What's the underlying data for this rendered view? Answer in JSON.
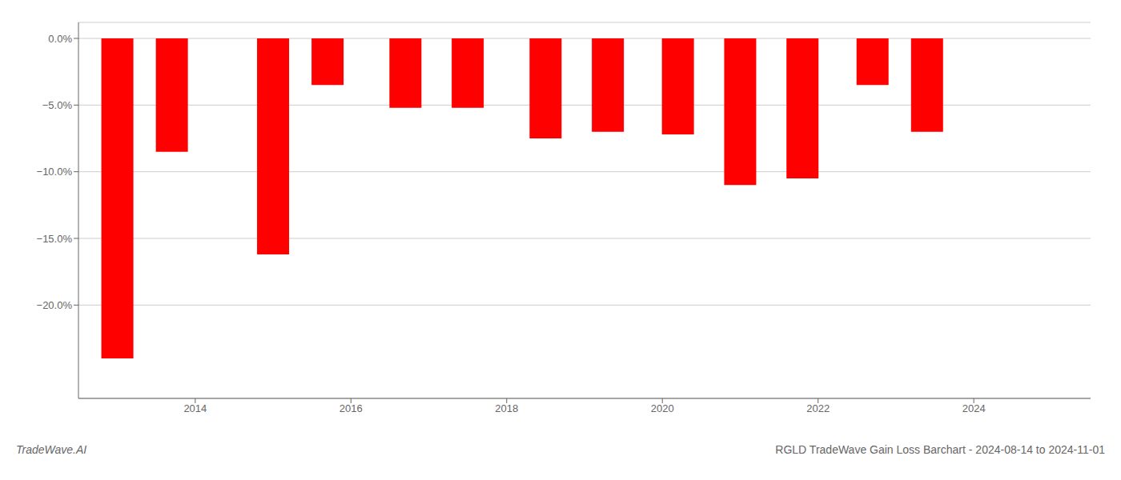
{
  "chart_data": {
    "type": "bar",
    "x": [
      2013,
      2013.7,
      2015,
      2015.7,
      2016.7,
      2017.5,
      2018.5,
      2019.3,
      2020.2,
      2021.0,
      2021.8,
      2022.7,
      2023.4
    ],
    "values": [
      -24.0,
      -8.5,
      -16.2,
      -3.5,
      -5.2,
      -5.2,
      -7.5,
      -7.0,
      -7.2,
      -11.0,
      -10.5,
      -3.5,
      -7.0
    ],
    "color": "#ff0000",
    "xlim": [
      2012.5,
      2025.5
    ],
    "xticks": [
      2014,
      2016,
      2018,
      2020,
      2022,
      2024
    ],
    "ylim": [
      -27.0,
      1.2
    ],
    "yticks": [
      {
        "value": 0.0,
        "label": "0.0%"
      },
      {
        "value": -5.0,
        "label": "−5.0%"
      },
      {
        "value": -10.0,
        "label": "−10.0%"
      },
      {
        "value": -15.0,
        "label": "−15.0%"
      },
      {
        "value": -20.0,
        "label": "−20.0%"
      }
    ],
    "grid": true,
    "annotations": [
      "TradeWave.AI",
      "RGLD TradeWave Gain Loss Barchart - 2024-08-14 to 2024-11-01"
    ]
  }
}
